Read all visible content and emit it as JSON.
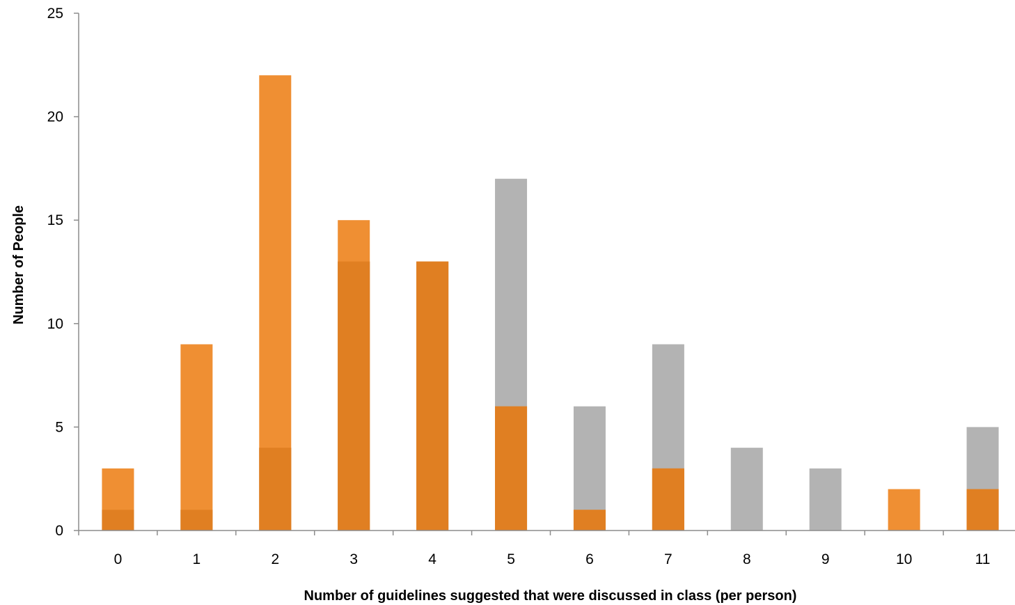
{
  "chart_data": {
    "type": "bar",
    "title": "",
    "xlabel": "Number of guidelines suggested that were discussed in class (per person)",
    "ylabel": "Number of People",
    "categories": [
      "0",
      "1",
      "2",
      "3",
      "4",
      "5",
      "6",
      "7",
      "8",
      "9",
      "10",
      "11"
    ],
    "series": [
      {
        "values": [
          3,
          9,
          22,
          15,
          13,
          6,
          1,
          3,
          0,
          0,
          2,
          2
        ],
        "color": "#ef8f33"
      },
      {
        "values": [
          1,
          1,
          4,
          13,
          13,
          17,
          6,
          9,
          4,
          3,
          0,
          5
        ],
        "color": "#b3b3b3"
      }
    ],
    "overlap_color": "#e07f22",
    "ylim": [
      0,
      25
    ],
    "yticks": [
      "0",
      "5",
      "10",
      "15",
      "20",
      "25"
    ],
    "grid": false,
    "legend": "none"
  }
}
